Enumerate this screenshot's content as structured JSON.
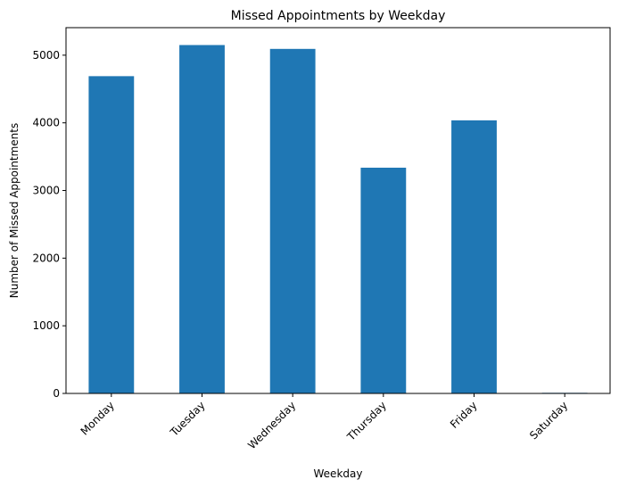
{
  "chart_data": {
    "type": "bar",
    "title": "Missed Appointments by Weekday",
    "xlabel": "Weekday",
    "ylabel": "Number of Missed Appointments",
    "categories": [
      "Monday",
      "Tuesday",
      "Wednesday",
      "Thursday",
      "Friday",
      "Saturday"
    ],
    "values": [
      4690,
      5150,
      5093,
      3337,
      4037,
      9
    ],
    "ylim": [
      0,
      5407
    ],
    "yticks": [
      0,
      1000,
      2000,
      3000,
      4000,
      5000
    ],
    "bar_color": "#1f77b4",
    "grid": false,
    "legend": false
  }
}
